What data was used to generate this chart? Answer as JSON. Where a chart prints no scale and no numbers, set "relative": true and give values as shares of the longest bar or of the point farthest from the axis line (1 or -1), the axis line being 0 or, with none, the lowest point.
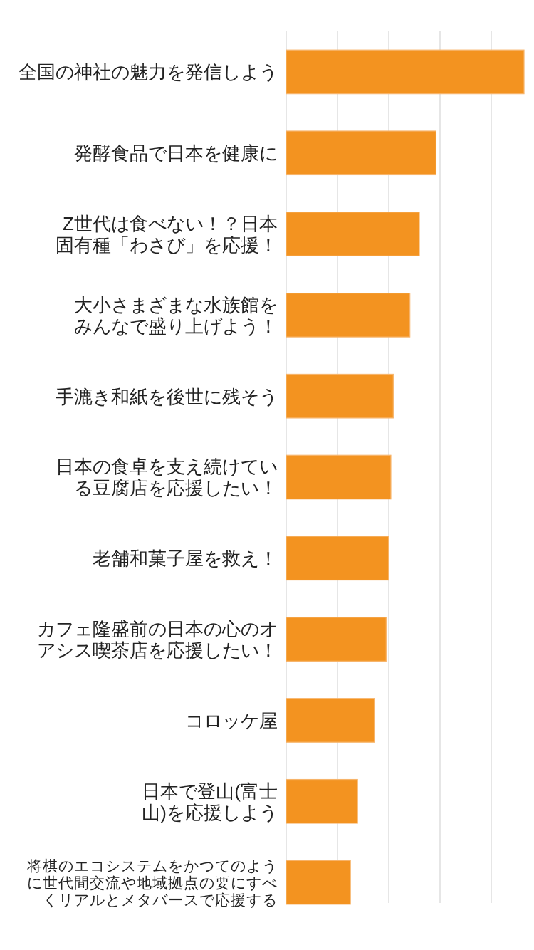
{
  "chart_data": {
    "type": "bar",
    "orientation": "horizontal",
    "relative": true,
    "grid": "x",
    "color": "#f39320",
    "categories": [
      "全国の神社の魅力を発信しよう",
      "発酵食品で日本を健康に",
      "Z世代は食べない！？日本固有種「わさび」を応援！",
      "大小さまざまな水族館をみんなで盛り上げよう！",
      "手漉き和紙を後世に残そう",
      "日本の食卓を支え続けている豆腐店を応援したい！",
      "老舗和菓子屋を救え！",
      "カフェ隆盛前の日本の心のオアシス喫茶店を応援したい！",
      "コロッケ屋",
      "日本で登山(富士山)を応援しよう",
      "将棋のエコシステムをかつてのように世代間交流や地域拠点の要にすべくリアルとメタバースで応援する"
    ],
    "values": [
      1,
      0.63,
      0.56,
      0.52,
      0.45,
      0.44,
      0.43,
      0.42,
      0.37,
      0.3,
      0.27
    ]
  }
}
